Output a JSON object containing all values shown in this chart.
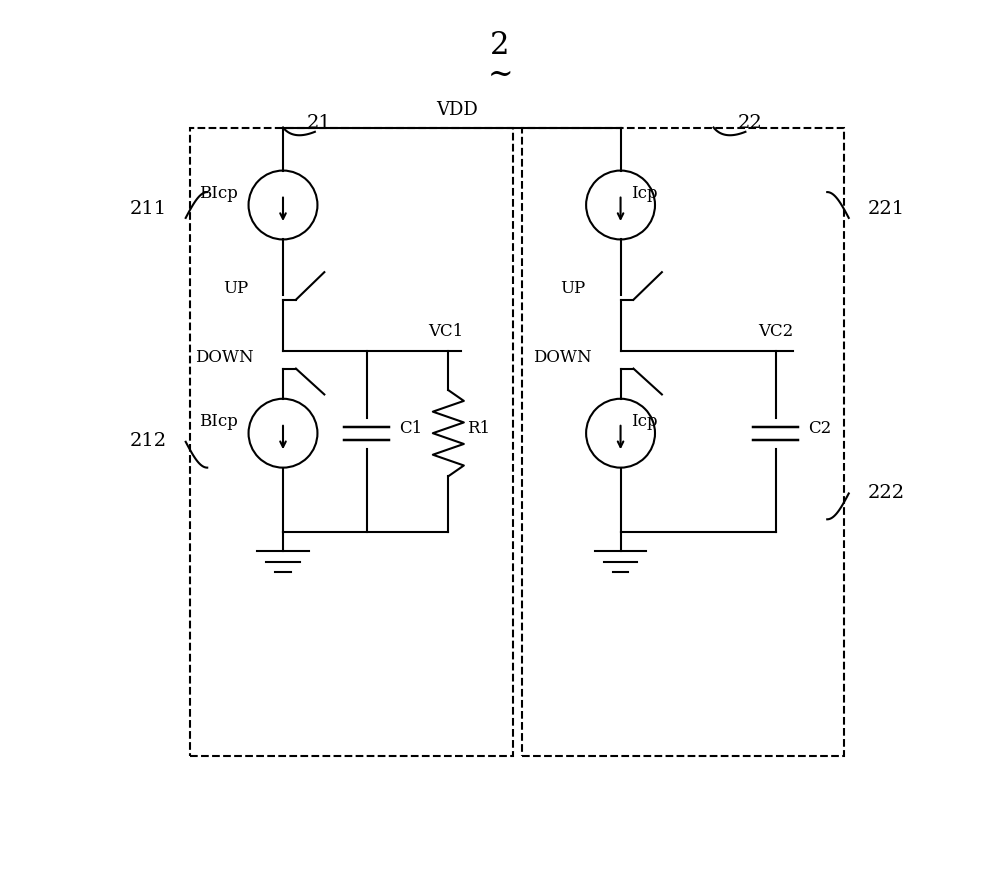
{
  "title": "2",
  "bg_color": "#ffffff",
  "line_color": "#000000",
  "box1_label": "21",
  "box2_label": "22",
  "label_211": "211",
  "label_212": "212",
  "label_221": "221",
  "label_222": "222",
  "font_size_title": 22,
  "font_size_label": 14,
  "font_size_component": 12
}
